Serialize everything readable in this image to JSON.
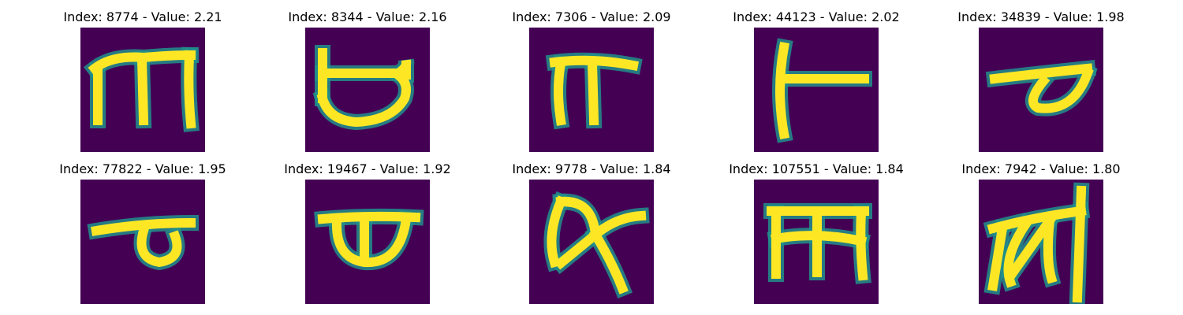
{
  "colors": {
    "background": "#440154",
    "mid": "#21918c",
    "bright": "#fde725"
  },
  "chart_data": {
    "type": "heatmap",
    "colormap": "viridis",
    "grid": false,
    "tiles": [
      {
        "title": "Index: 8774 - Value: 2.21",
        "index": 8774,
        "value": 2.21,
        "glyph": "m-shape"
      },
      {
        "title": "Index: 8344 - Value: 2.16",
        "index": 8344,
        "value": 2.16,
        "glyph": "cup-shape"
      },
      {
        "title": "Index: 7306 - Value: 2.09",
        "index": 7306,
        "value": 2.09,
        "glyph": "pi-shape"
      },
      {
        "title": "Index: 44123 - Value: 2.02",
        "index": 44123,
        "value": 2.02,
        "glyph": "t-shape"
      },
      {
        "title": "Index: 34839 - Value: 1.98",
        "index": 34839,
        "value": 1.98,
        "glyph": "leaf-shape"
      },
      {
        "title": "Index: 77822 - Value: 1.95",
        "index": 77822,
        "value": 1.95,
        "glyph": "flag-shape"
      },
      {
        "title": "Index: 19467 - Value: 1.92",
        "index": 19467,
        "value": 1.92,
        "glyph": "bowl-shape"
      },
      {
        "title": "Index: 9778 - Value: 1.84",
        "index": 9778,
        "value": 1.84,
        "glyph": "kappa-shape"
      },
      {
        "title": "Index: 107551 - Value: 1.84",
        "index": 107551,
        "value": 1.84,
        "glyph": "m-block-shape"
      },
      {
        "title": "Index: 7942 - Value: 1.80",
        "index": 7942,
        "value": 1.8,
        "glyph": "ka-shape"
      }
    ]
  }
}
